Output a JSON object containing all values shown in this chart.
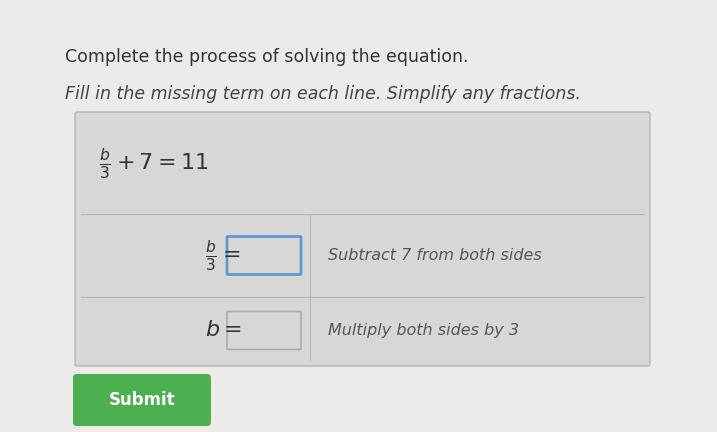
{
  "bg_color": "#edeaea",
  "title1": "Complete the process of solving the equation.",
  "title2": "Fill in the missing term on each line. Simplify any fractions.",
  "title1_color": "#333333",
  "title2_color": "#444444",
  "title1_fontsize": 12.5,
  "title2_fontsize": 12.5,
  "table_bg": "#d9d6d6",
  "table_border_color": "#b8b4b4",
  "input_box_color_1": "#5b9bd5",
  "input_box_color_2": "#aaaaaa",
  "submit_bg": "#4caf50",
  "submit_text": "Submit",
  "submit_text_color": "#ffffff",
  "row2_right": "Subtract 7 from both sides",
  "row3_right": "Multiply both sides by 3",
  "equation_color": "#333333",
  "annotation_color": "#555555",
  "annotation_fontsize": 11.5
}
